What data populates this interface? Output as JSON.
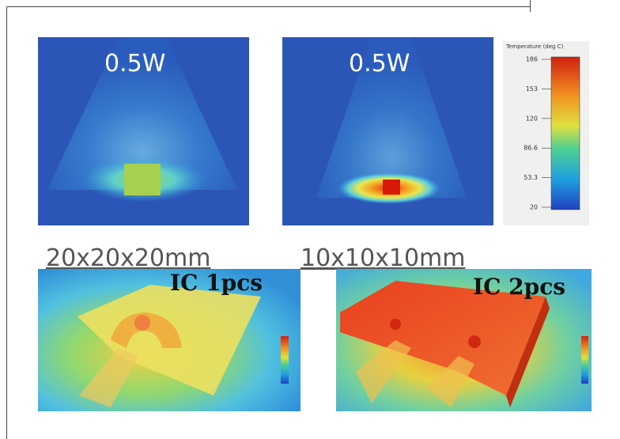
{
  "panels": [
    {
      "label": "0.5W"
    },
    {
      "label": "0.5W"
    }
  ],
  "colorbar": {
    "title": "Temperature (deg C)",
    "ticks": [
      "186",
      "153",
      "120",
      "86.6",
      "53.3",
      "20"
    ]
  },
  "captions": [
    "20x20x20mm",
    "10x10x10mm"
  ],
  "boards": [
    {
      "label": "IC 1pcs"
    },
    {
      "label": "IC 2pcs"
    }
  ]
}
